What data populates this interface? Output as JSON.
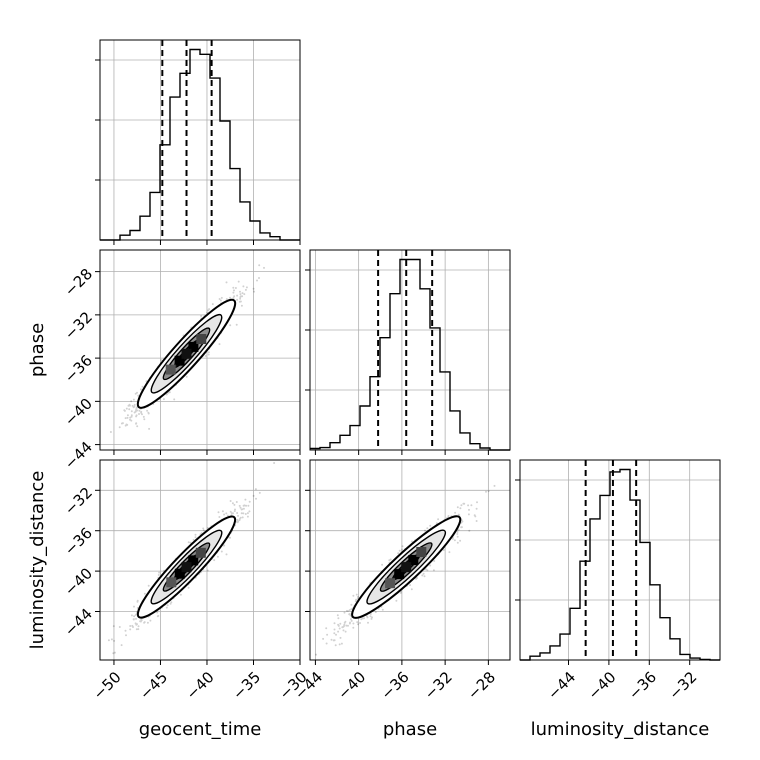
{
  "chart_data": {
    "type": "corner",
    "grid": true,
    "parameters": [
      "geocent_time",
      "phase",
      "luminosity_distance"
    ],
    "ranges": {
      "geocent_time": [
        -51.5,
        -30
      ],
      "phase": [
        -44.5,
        -26
      ],
      "luminosity_distance": [
        -48.8,
        -29
      ]
    },
    "ticks": {
      "geocent_time": [
        "-50",
        "-45",
        "-40",
        "-35",
        "-30"
      ],
      "phase": [
        "-44",
        "-40",
        "-36",
        "-32",
        "-28"
      ],
      "luminosity_distance": [
        "-44",
        "-40",
        "-36",
        "-32"
      ]
    },
    "tick_values": {
      "geocent_time": [
        -50,
        -45,
        -40,
        -35,
        -30
      ],
      "phase": [
        -44,
        -40,
        -36,
        -32,
        -28
      ],
      "luminosity_distance": [
        -44,
        -40,
        -36,
        -32
      ]
    },
    "xlabels": [
      "geocent_time",
      "phase",
      "luminosity_distance"
    ],
    "ylabels": [
      "",
      "phase",
      "luminosity_distance"
    ],
    "marginals": [
      {
        "parameter": "geocent_time",
        "bin_start": -51.5,
        "bin_width": 1.075,
        "counts": [
          0,
          0,
          1,
          2,
          5,
          10,
          20,
          30,
          35,
          40,
          39,
          34,
          25,
          15,
          8,
          4,
          1.5,
          0.7,
          0,
          0
        ],
        "quantiles": [
          -44.8,
          -42.2,
          -39.5
        ]
      },
      {
        "parameter": "phase",
        "bin_start": -44.5,
        "bin_width": 0.925,
        "counts": [
          0.3,
          0.5,
          1.5,
          3,
          5,
          9,
          15,
          23,
          32,
          39,
          39,
          33,
          25,
          16,
          8,
          3.5,
          1.3,
          0.4,
          0,
          0
        ],
        "quantiles": [
          -38.2,
          -35.6,
          -33.2
        ]
      },
      {
        "parameter": "luminosity_distance",
        "bin_start": -48.8,
        "bin_width": 0.99,
        "counts": [
          0,
          0.8,
          1.5,
          3,
          5.5,
          11,
          21,
          30,
          35,
          40,
          40.5,
          34,
          25,
          16,
          9,
          4.5,
          1.2,
          0.4,
          0.1,
          0
        ],
        "quantiles": [
          -42.3,
          -39.6,
          -37.3
        ]
      }
    ],
    "correlation": 0.95,
    "center": [
      -42.2,
      -35.6,
      -39.6
    ],
    "sigma": [
      2.6,
      2.5,
      2.5
    ]
  }
}
